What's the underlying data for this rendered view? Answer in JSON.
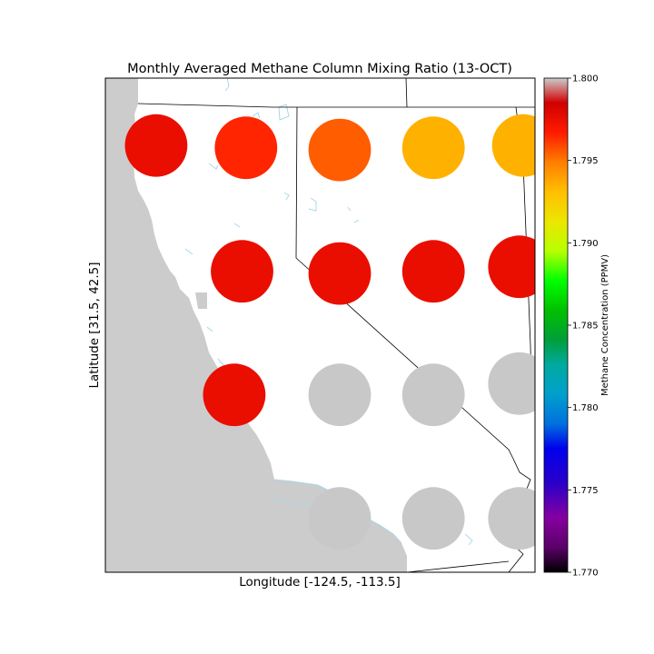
{
  "chart_data": {
    "type": "scatter",
    "title": "Monthly Averaged Methane Column Mixing Ratio (13-OCT)",
    "xlabel": "Longitude [-124.5, -113.5]",
    "ylabel": "Latitude [31.5, 42.5]",
    "xlim": [
      -124.5,
      -113.5
    ],
    "ylim": [
      31.5,
      42.5
    ],
    "marker_size_units": 1.6,
    "points": [
      {
        "lon": -123.2,
        "lat": 41.0,
        "value": 1.7975
      },
      {
        "lon": -120.9,
        "lat": 40.95,
        "value": 1.7965
      },
      {
        "lon": -118.5,
        "lat": 40.9,
        "value": 1.7955
      },
      {
        "lon": -116.1,
        "lat": 40.95,
        "value": 1.7935
      },
      {
        "lon": -113.8,
        "lat": 41.0,
        "value": 1.7935
      },
      {
        "lon": -121.0,
        "lat": 38.2,
        "value": 1.7975
      },
      {
        "lon": -118.5,
        "lat": 38.15,
        "value": 1.7975
      },
      {
        "lon": -116.1,
        "lat": 38.2,
        "value": 1.7975
      },
      {
        "lon": -113.9,
        "lat": 38.3,
        "value": 1.7975
      },
      {
        "lon": -121.2,
        "lat": 35.45,
        "value": 1.7975
      },
      {
        "lon": -118.5,
        "lat": 35.45,
        "value": null
      },
      {
        "lon": -116.1,
        "lat": 35.45,
        "value": null
      },
      {
        "lon": -113.9,
        "lat": 35.7,
        "value": null
      },
      {
        "lon": -118.5,
        "lat": 32.7,
        "value": null
      },
      {
        "lon": -116.1,
        "lat": 32.7,
        "value": null
      },
      {
        "lon": -113.9,
        "lat": 32.7,
        "value": null
      }
    ],
    "colorbar": {
      "label": "Methane Concentration (PPMV)",
      "range": [
        1.77,
        1.8
      ],
      "ticks": [
        "1.770",
        "1.775",
        "1.780",
        "1.785",
        "1.790",
        "1.795",
        "1.800"
      ],
      "colormap": "nipy_spectral"
    },
    "land_color": "#ffffff",
    "ocean_color": "#cccccc",
    "missing_value_color": "#c8c8c8",
    "coastline_color": "#a8d8e8",
    "border_color": "#000000"
  }
}
